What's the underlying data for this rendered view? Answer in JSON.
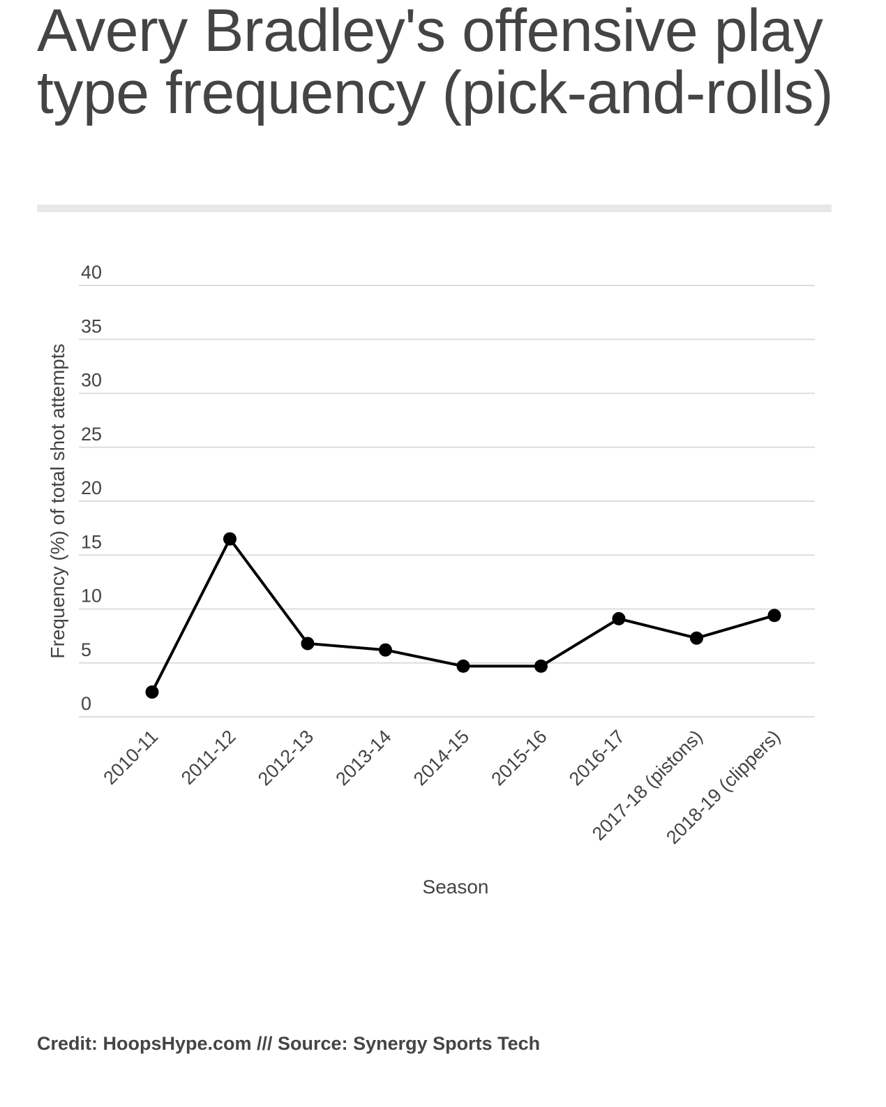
{
  "chart_data": {
    "type": "line",
    "title": "Avery Bradley's offensive play type frequency (pick-and-rolls)",
    "xlabel": "Season",
    "ylabel": "Frequency (%) of total shot attempts",
    "categories": [
      "2010-11",
      "2011-12",
      "2012-13",
      "2013-14",
      "2014-15",
      "2015-16",
      "2016-17",
      "2017-18 (pistons)",
      "2018-19 (clippers)"
    ],
    "series": [
      {
        "values": [
          2.3,
          16.5,
          6.8,
          6.2,
          4.7,
          4.7,
          9.1,
          7.3,
          9.4
        ],
        "color": "#000000"
      }
    ],
    "ylim": [
      0,
      40
    ],
    "yticks": [
      "0",
      "5",
      "10",
      "15",
      "20",
      "25",
      "30",
      "35",
      "40"
    ],
    "grid": true,
    "colors": {
      "line": "#000000",
      "grid": "#dddddd",
      "axis_text": "#444444"
    }
  },
  "credit": "Credit: HoopsHype.com /// Source: Synergy Sports Tech"
}
